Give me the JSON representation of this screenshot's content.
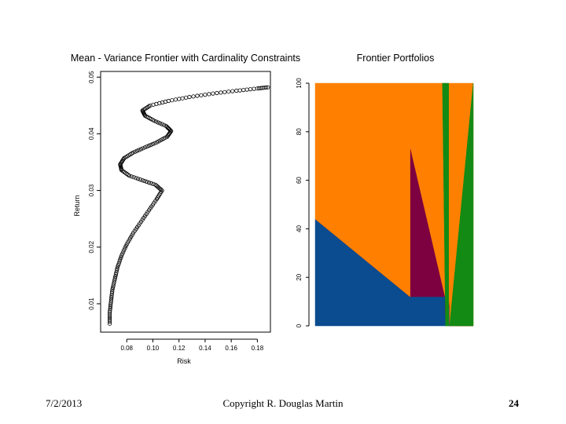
{
  "chart_data": [
    {
      "type": "scatter",
      "title": "Mean - Variance Frontier with Cardinality Constraints",
      "xlabel": "Risk",
      "ylabel": "Return",
      "xlim": [
        0.06,
        0.19
      ],
      "ylim": [
        0.005,
        0.051
      ],
      "xticks": [
        0.08,
        0.1,
        0.12,
        0.14,
        0.16,
        0.18
      ],
      "xtick_labels": [
        "0.08",
        "0.10",
        "0.12",
        "0.14",
        "0.16",
        "0.18"
      ],
      "yticks": [
        0.01,
        0.02,
        0.03,
        0.04,
        0.05
      ],
      "ytick_labels": [
        "0.01",
        "0.02",
        "0.03",
        "0.04",
        "0.05"
      ],
      "grid": false,
      "series": [
        {
          "name": "frontier",
          "points": [
            [
              0.067,
              0.0065
            ],
            [
              0.067,
              0.0085
            ],
            [
              0.068,
              0.0105
            ],
            [
              0.069,
              0.0125
            ],
            [
              0.071,
              0.0145
            ],
            [
              0.073,
              0.0165
            ],
            [
              0.076,
              0.0185
            ],
            [
              0.08,
              0.0205
            ],
            [
              0.085,
              0.0225
            ],
            [
              0.091,
              0.0245
            ],
            [
              0.097,
              0.0265
            ],
            [
              0.103,
              0.0285
            ],
            [
              0.107,
              0.03
            ],
            [
              0.102,
              0.031
            ],
            [
              0.092,
              0.0318
            ],
            [
              0.082,
              0.0326
            ],
            [
              0.076,
              0.0336
            ],
            [
              0.075,
              0.0346
            ],
            [
              0.078,
              0.0357
            ],
            [
              0.085,
              0.0367
            ],
            [
              0.094,
              0.0376
            ],
            [
              0.103,
              0.0385
            ],
            [
              0.111,
              0.0395
            ],
            [
              0.114,
              0.0405
            ],
            [
              0.11,
              0.0414
            ],
            [
              0.101,
              0.0423
            ],
            [
              0.094,
              0.0432
            ],
            [
              0.092,
              0.0441
            ],
            [
              0.098,
              0.045
            ],
            [
              0.112,
              0.0458
            ],
            [
              0.128,
              0.0465
            ],
            [
              0.146,
              0.0471
            ],
            [
              0.164,
              0.0476
            ],
            [
              0.18,
              0.048
            ],
            [
              0.188,
              0.0482
            ]
          ]
        }
      ]
    },
    {
      "type": "area",
      "title": "Frontier Portfolios",
      "xlabel": "",
      "ylabel": "",
      "ylim": [
        0,
        100
      ],
      "yticks": [
        0,
        20,
        40,
        60,
        80,
        100
      ],
      "ytick_labels": [
        "0",
        "20",
        "40",
        "60",
        "80",
        "100"
      ],
      "xlim": [
        0,
        1
      ],
      "stacked": true,
      "x": [
        0,
        0.6,
        0.6,
        0.822,
        0.822,
        0.85,
        0.85,
        1
      ],
      "series": [
        {
          "name": "blue",
          "color": "#0b4b8f",
          "values": [
            44,
            12,
            12,
            12,
            5,
            8,
            0,
            0
          ]
        },
        {
          "name": "maroon",
          "color": "#7d0040",
          "values": [
            0,
            0,
            62,
            0,
            20,
            0,
            0,
            0
          ]
        },
        {
          "name": "orange",
          "color": "#ff8000",
          "values": [
            56,
            88,
            26,
            88,
            75,
            92,
            100,
            100
          ]
        },
        {
          "name": "green",
          "color": "#138a13",
          "values": [
            0,
            0,
            0,
            0,
            0,
            0,
            0,
            0
          ]
        }
      ],
      "green_regions": [
        {
          "polygon": [
            [
              0.805,
              100
            ],
            [
              0.845,
              100
            ],
            [
              0.845,
              0
            ],
            [
              0.825,
              0
            ]
          ]
        },
        {
          "polygon": [
            [
              1,
              100
            ],
            [
              1,
              0
            ],
            [
              0.85,
              0
            ]
          ]
        }
      ]
    }
  ],
  "footer": {
    "date": "7/2/2013",
    "copyright": "Copyright R. Douglas Martin",
    "page_number": "24"
  }
}
